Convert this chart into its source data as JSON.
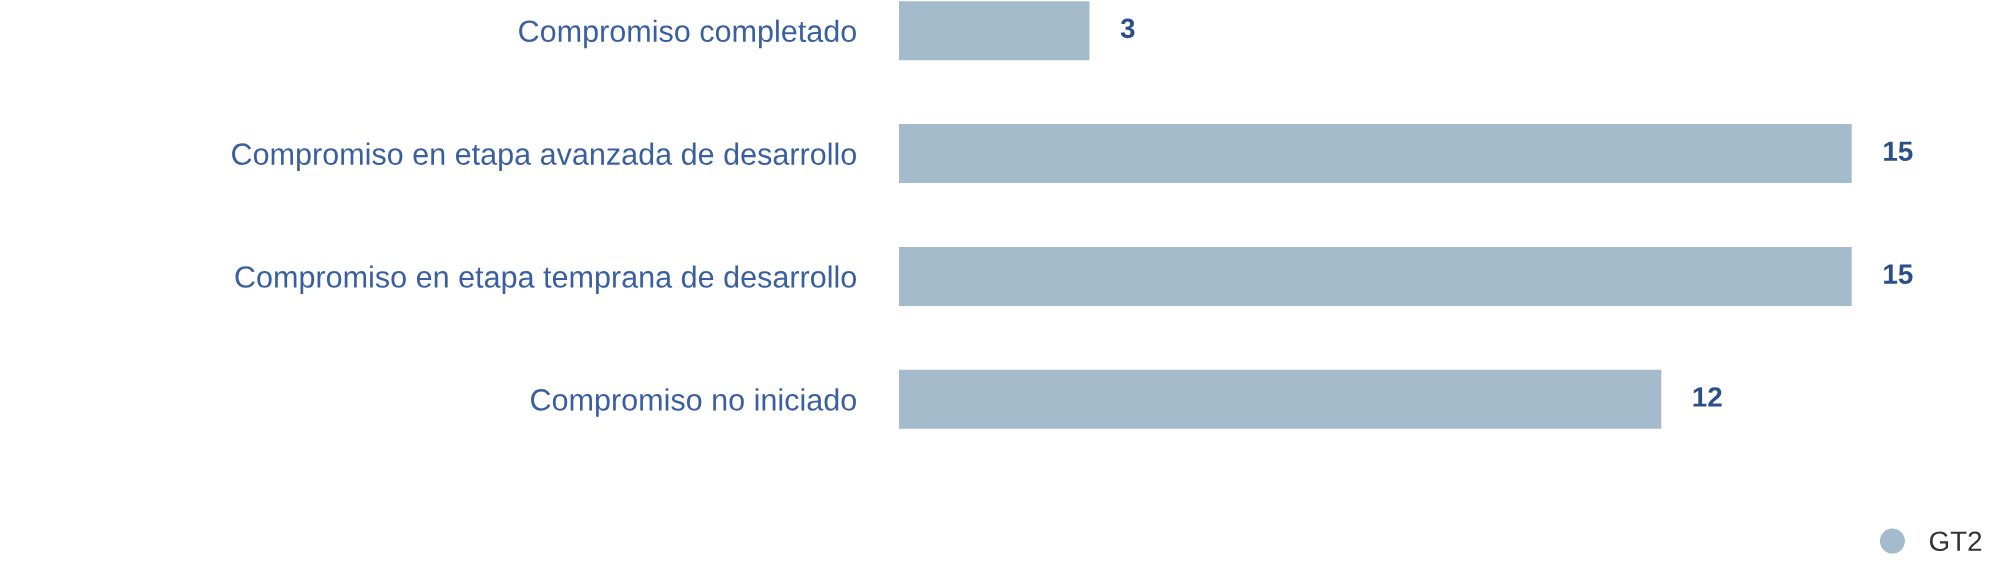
{
  "chart_data": {
    "type": "bar",
    "orientation": "horizontal",
    "categories": [
      "Compromiso completado",
      "Compromiso en etapa avanzada de desarrollo",
      "Compromiso en etapa temprana de desarrollo",
      "Compromiso no iniciado"
    ],
    "series": [
      {
        "name": "GT2",
        "color": "#a3bbcb",
        "values": [
          3,
          15,
          15,
          12
        ]
      }
    ],
    "data_labels": true,
    "grid": false,
    "legend": "bottom right",
    "tick_labels": "y"
  }
}
